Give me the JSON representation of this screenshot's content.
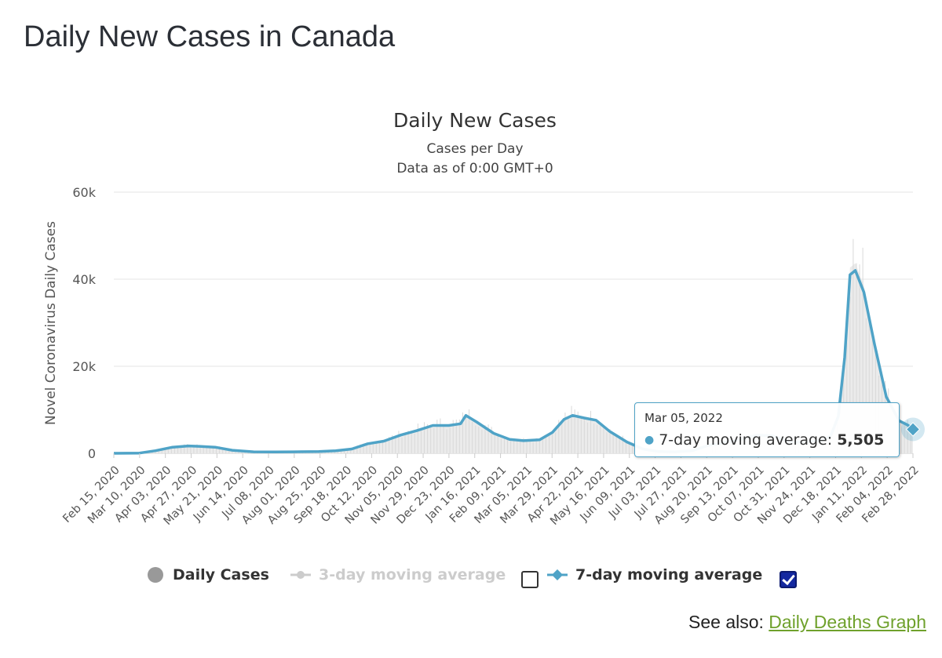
{
  "page": {
    "title": "Daily New Cases in Canada",
    "see_also_label": "See also:",
    "see_also_link": "Daily Deaths Graph"
  },
  "legend": {
    "items": [
      {
        "label": "Daily Cases",
        "color": "#999999",
        "enabled": true
      },
      {
        "label": "3-day moving average",
        "color": "#cccccc",
        "enabled": false,
        "checked": false
      },
      {
        "label": "7-day moving average",
        "color": "#4fa3c7",
        "enabled": true,
        "checked": true
      }
    ]
  },
  "tooltip": {
    "date": "Mar 05, 2022",
    "series": "7-day moving average:",
    "value": "5,505"
  },
  "chart_data": {
    "type": "line",
    "title": "Daily New Cases",
    "subtitle": "Cases per Day",
    "subtitle2": "Data as of 0:00 GMT+0",
    "ylabel": "Novel Coronavirus Daily Cases",
    "ylim": [
      0,
      60000
    ],
    "yticks": [
      0,
      20000,
      40000,
      60000
    ],
    "ytick_labels": [
      "0",
      "20k",
      "40k",
      "60k"
    ],
    "grid": true,
    "legend_position": "bottom",
    "xlim": [
      "2020-02-15",
      "2022-03-05"
    ],
    "xtick_labels": [
      "Feb 15, 2020",
      "Mar 10, 2020",
      "Apr 03, 2020",
      "Apr 27, 2020",
      "May 21, 2020",
      "Jun 14, 2020",
      "Jul 08, 2020",
      "Aug 01, 2020",
      "Aug 25, 2020",
      "Sep 18, 2020",
      "Oct 12, 2020",
      "Nov 05, 2020",
      "Nov 29, 2020",
      "Dec 23, 2020",
      "Jan 16, 2021",
      "Feb 09, 2021",
      "Mar 05, 2021",
      "Mar 29, 2021",
      "Apr 22, 2021",
      "May 16, 2021",
      "Jun 09, 2021",
      "Jul 03, 2021",
      "Jul 27, 2021",
      "Aug 20, 2021",
      "Sep 13, 2021",
      "Oct 07, 2021",
      "Oct 31, 2021",
      "Nov 24, 2021",
      "Dec 18, 2021",
      "Jan 11, 2022",
      "Feb 04, 2022",
      "Feb 28, 2022"
    ],
    "series": [
      {
        "name": "7-day moving average",
        "color": "#4fa3c7",
        "x": [
          "2020-02-15",
          "2020-03-10",
          "2020-03-25",
          "2020-04-10",
          "2020-04-25",
          "2020-05-05",
          "2020-05-20",
          "2020-06-05",
          "2020-06-25",
          "2020-07-15",
          "2020-08-01",
          "2020-08-25",
          "2020-09-10",
          "2020-09-25",
          "2020-10-10",
          "2020-10-25",
          "2020-11-10",
          "2020-11-25",
          "2020-12-10",
          "2020-12-25",
          "2021-01-05",
          "2021-01-10",
          "2021-01-20",
          "2021-02-05",
          "2021-02-20",
          "2021-03-05",
          "2021-03-20",
          "2021-04-01",
          "2021-04-12",
          "2021-04-20",
          "2021-05-01",
          "2021-05-12",
          "2021-05-25",
          "2021-06-10",
          "2021-06-25",
          "2021-07-10",
          "2021-07-25",
          "2021-08-10",
          "2021-08-25",
          "2021-09-10",
          "2021-09-25",
          "2021-10-10",
          "2021-10-25",
          "2021-11-10",
          "2021-11-25",
          "2021-12-10",
          "2021-12-18",
          "2021-12-25",
          "2021-12-31",
          "2022-01-05",
          "2022-01-10",
          "2022-01-18",
          "2022-01-28",
          "2022-02-08",
          "2022-02-20",
          "2022-02-28",
          "2022-03-05"
        ],
        "y": [
          0,
          50,
          600,
          1400,
          1700,
          1600,
          1400,
          700,
          350,
          300,
          350,
          400,
          600,
          1000,
          2200,
          2800,
          4200,
          5200,
          6400,
          6400,
          6800,
          8700,
          7200,
          4600,
          3200,
          2900,
          3100,
          4800,
          7800,
          8700,
          8100,
          7600,
          5000,
          2600,
          1000,
          400,
          350,
          600,
          1800,
          2500,
          3200,
          4200,
          4000,
          2500,
          2600,
          3000,
          4000,
          8500,
          22000,
          41000,
          42000,
          37000,
          25000,
          13000,
          7500,
          6500,
          5505
        ]
      }
    ]
  }
}
